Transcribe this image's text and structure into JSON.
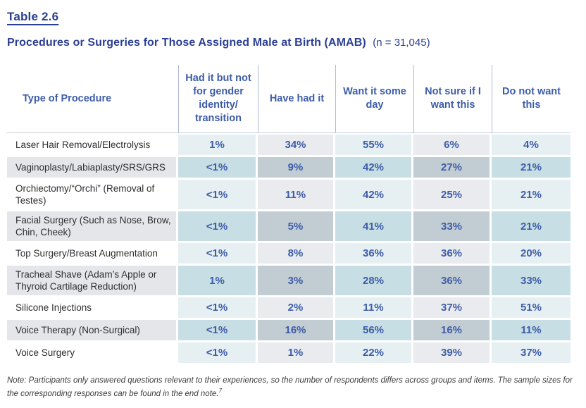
{
  "header": {
    "table_label": "Table 2.6",
    "title": "Procedures or Surgeries for Those Assigned Male at Birth (AMAB)",
    "sample_size": "(n = 31,045)"
  },
  "table": {
    "columns": [
      "Type of Procedure",
      "Had it but not for gender identity/transition",
      "Have had it",
      "Want it some day",
      "Not sure if I want this",
      "Do not want this"
    ],
    "rows": [
      {
        "label": "Laser Hair Removal/Electrolysis",
        "values": [
          "1%",
          "34%",
          "55%",
          "6%",
          "4%"
        ]
      },
      {
        "label": "Vaginoplasty/Labiaplasty/SRS/GRS",
        "values": [
          "<1%",
          "9%",
          "42%",
          "27%",
          "21%"
        ]
      },
      {
        "label": "Orchiectomy/“Orchi” (Removal of Testes)",
        "values": [
          "<1%",
          "11%",
          "42%",
          "25%",
          "21%"
        ]
      },
      {
        "label": "Facial Surgery (Such as Nose, Brow, Chin, Cheek)",
        "values": [
          "<1%",
          "5%",
          "41%",
          "33%",
          "21%"
        ]
      },
      {
        "label": "Top Surgery/Breast Augmentation",
        "values": [
          "<1%",
          "8%",
          "36%",
          "36%",
          "20%"
        ]
      },
      {
        "label": "Tracheal Shave (Adam’s Apple or Thyroid Cartilage Reduction)",
        "values": [
          "1%",
          "3%",
          "28%",
          "36%",
          "33%"
        ]
      },
      {
        "label": "Silicone Injections",
        "values": [
          "<1%",
          "2%",
          "11%",
          "37%",
          "51%"
        ]
      },
      {
        "label": "Voice Therapy (Non-Surgical)",
        "values": [
          "<1%",
          "16%",
          "56%",
          "16%",
          "11%"
        ]
      },
      {
        "label": "Voice Surgery",
        "values": [
          "<1%",
          "1%",
          "22%",
          "39%",
          "37%"
        ]
      }
    ]
  },
  "note": {
    "text": "Note: Participants only answered questions relevant to their experiences, so the number of respondents differs across groups and items. The sample sizes for the corresponding responses can be found in the end note.",
    "superscript": "7"
  },
  "colors": {
    "title_blue": "#2b3f94",
    "data_blue": "#3d5ca8",
    "label_text": "#2e2e30",
    "light_cyan_cell": "#e6f0f3",
    "light_gray_cell": "#e9ebee",
    "dark_cyan_cell": "#c7dfe4",
    "dark_gray_cell": "#c2cdd3",
    "label_alt_bg": "#e5e6e9",
    "header_vline": "#aeb8d6",
    "header_hline": "#c8cfdc"
  }
}
